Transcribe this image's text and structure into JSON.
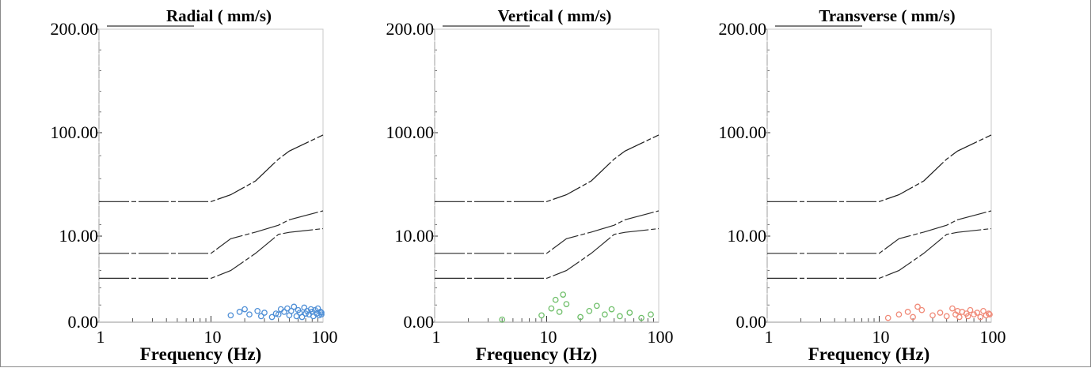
{
  "figure": {
    "border_color": "#8a8a8a"
  },
  "chart_data": [
    {
      "type": "scatter",
      "title": "Radial ( mm/s)",
      "xlabel": "Frequency (Hz)",
      "ylabel": "",
      "x_scale": "log",
      "xlim": [
        1,
        100
      ],
      "x_ticks": [
        "1",
        "10",
        "100"
      ],
      "y_ticks": [
        "0.00",
        "10.00",
        "100.00",
        "200.00"
      ],
      "grid": false,
      "marker_color": "#4f8fd6",
      "limit_curves": [
        {
          "x": [
            1,
            10,
            15,
            25,
            40,
            50,
            100
          ],
          "y": [
            40,
            40,
            46,
            58,
            77,
            84,
            98
          ]
        },
        {
          "x": [
            1,
            10,
            15,
            25,
            40,
            50,
            100
          ],
          "y": [
            8,
            8,
            9.7,
            13.5,
            19.5,
            24.2,
            32
          ]
        },
        {
          "x": [
            1,
            10,
            15,
            25,
            40,
            50,
            100
          ],
          "y": [
            5.1,
            5.1,
            6,
            8,
            11.5,
            13.3,
            16.5
          ]
        }
      ],
      "points": {
        "x": [
          15,
          18,
          20,
          22,
          26,
          28,
          30,
          35,
          38,
          40,
          42,
          45,
          48,
          50,
          52,
          55,
          58,
          60,
          62,
          65,
          68,
          70,
          72,
          75,
          78,
          80,
          82,
          85,
          88,
          90,
          92,
          95,
          98,
          100
        ],
        "y": [
          0.8,
          1.2,
          1.5,
          0.9,
          1.3,
          0.7,
          1.1,
          0.6,
          1.0,
          0.9,
          1.5,
          1.2,
          1.6,
          0.8,
          1.3,
          1.8,
          0.7,
          1.4,
          1.1,
          0.6,
          1.7,
          1.0,
          1.3,
          0.9,
          1.5,
          1.2,
          0.7,
          1.4,
          1.0,
          1.6,
          0.8,
          1.2,
          0.9,
          1.1
        ]
      }
    },
    {
      "type": "scatter",
      "title": "Vertical ( mm/s)",
      "xlabel": "Frequency (Hz)",
      "ylabel": "",
      "x_scale": "log",
      "xlim": [
        1,
        100
      ],
      "x_ticks": [
        "1",
        "10",
        "100"
      ],
      "y_ticks": [
        "0.00",
        "10.00",
        "100.00",
        "200.00"
      ],
      "grid": false,
      "marker_color": "#6fbf6a",
      "limit_curves": [
        {
          "x": [
            1,
            10,
            15,
            25,
            40,
            50,
            100
          ],
          "y": [
            40,
            40,
            46,
            58,
            77,
            84,
            98
          ]
        },
        {
          "x": [
            1,
            10,
            15,
            25,
            40,
            50,
            100
          ],
          "y": [
            8,
            8,
            9.7,
            13.5,
            19.5,
            24.2,
            32
          ]
        },
        {
          "x": [
            1,
            10,
            15,
            25,
            40,
            50,
            100
          ],
          "y": [
            5.1,
            5.1,
            6,
            8,
            11.5,
            13.3,
            16.5
          ]
        }
      ],
      "points": {
        "x": [
          4,
          9,
          11,
          12,
          13,
          14,
          15,
          20,
          24,
          28,
          33,
          38,
          45,
          55,
          70,
          85
        ],
        "y": [
          0.3,
          0.8,
          1.6,
          2.6,
          1.2,
          3.2,
          2.1,
          0.6,
          1.3,
          1.9,
          0.9,
          1.5,
          0.7,
          1.1,
          0.5,
          0.9
        ]
      }
    },
    {
      "type": "scatter",
      "title": "Transverse ( mm/s)",
      "xlabel": "Frequency (Hz)",
      "ylabel": "",
      "x_scale": "log",
      "xlim": [
        1,
        100
      ],
      "x_ticks": [
        "1",
        "10",
        "100"
      ],
      "y_ticks": [
        "0.00",
        "10.00",
        "100.00",
        "200.00"
      ],
      "grid": false,
      "marker_color": "#f08a78",
      "limit_curves": [
        {
          "x": [
            1,
            10,
            15,
            25,
            40,
            50,
            100
          ],
          "y": [
            40,
            40,
            46,
            58,
            77,
            84,
            98
          ]
        },
        {
          "x": [
            1,
            10,
            15,
            25,
            40,
            50,
            100
          ],
          "y": [
            8,
            8,
            9.7,
            13.5,
            19.5,
            24.2,
            32
          ]
        },
        {
          "x": [
            1,
            10,
            15,
            25,
            40,
            50,
            100
          ],
          "y": [
            5.1,
            5.1,
            6,
            8,
            11.5,
            13.3,
            16.5
          ]
        }
      ],
      "points": {
        "x": [
          12,
          15,
          18,
          20,
          22,
          24,
          30,
          35,
          40,
          45,
          48,
          50,
          52,
          55,
          60,
          62,
          65,
          70,
          75,
          80,
          85,
          90,
          95,
          100
        ],
        "y": [
          0.5,
          0.9,
          1.2,
          0.6,
          1.8,
          1.4,
          0.8,
          1.1,
          0.7,
          1.6,
          0.9,
          1.3,
          0.6,
          1.2,
          1.0,
          0.7,
          1.4,
          0.9,
          1.1,
          0.6,
          1.3,
          0.8,
          1.0,
          0.9
        ]
      }
    }
  ]
}
